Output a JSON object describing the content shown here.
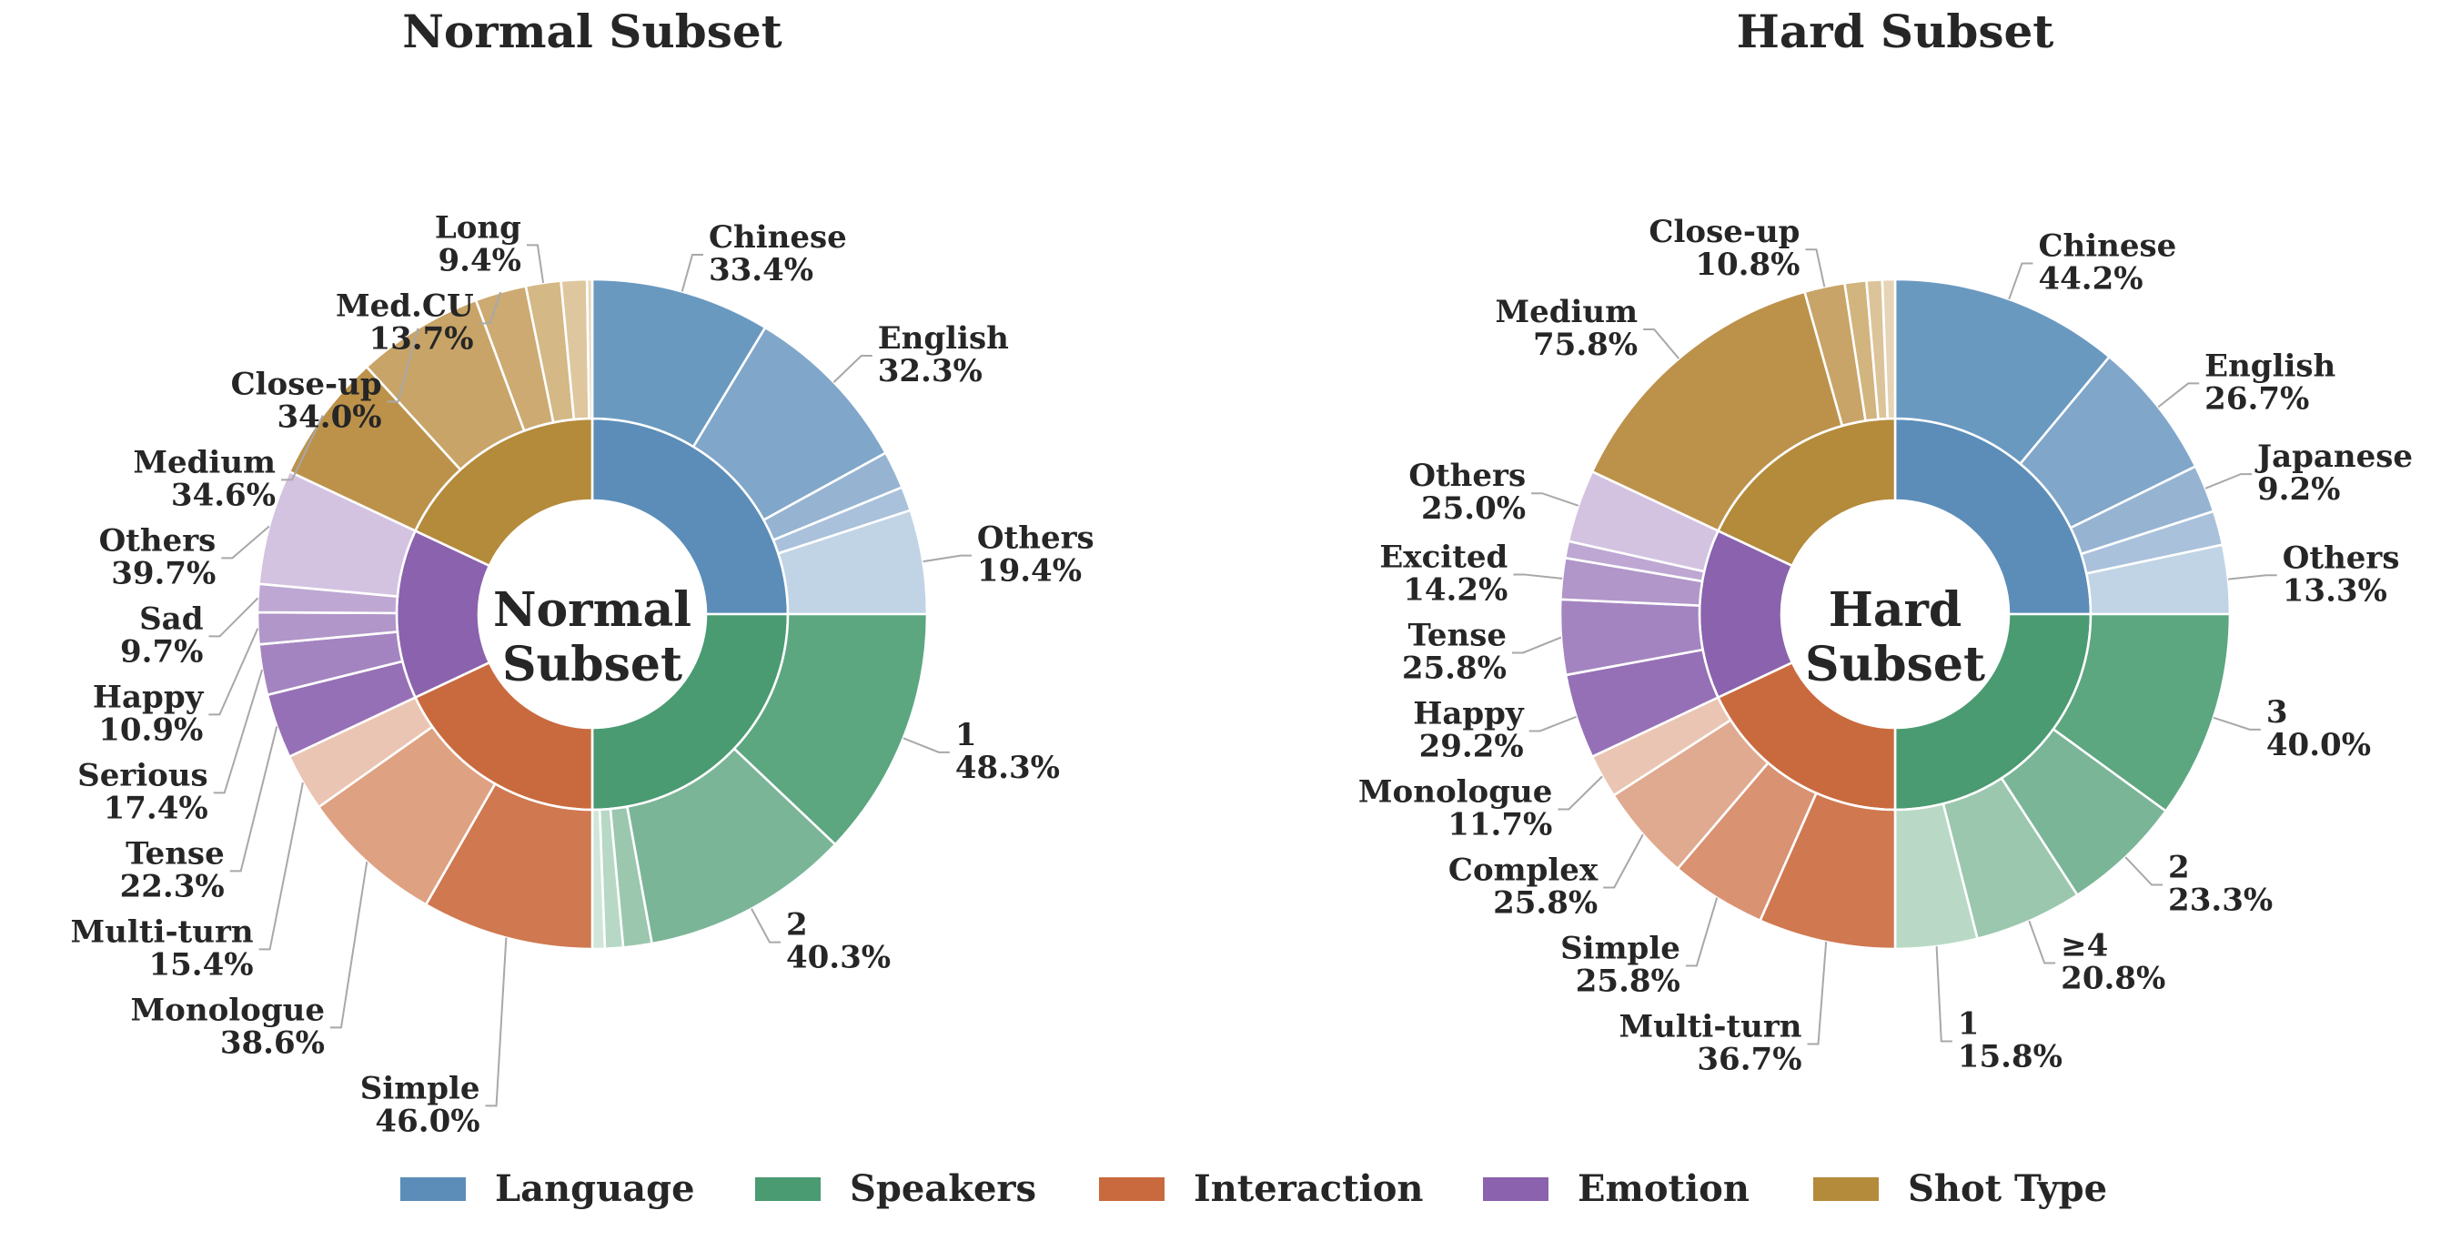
{
  "chart_data": [
    {
      "type": "pie",
      "subtype": "nested-donut",
      "title": "Normal Subset",
      "center_label": [
        "Normal",
        "Subset"
      ],
      "groups": [
        {
          "name": "Language",
          "color": "#5b8db8",
          "share": 25,
          "subcategories": [
            {
              "label": "Chinese",
              "value": 33.4,
              "color": "#6a99c0",
              "labeled": true
            },
            {
              "label": "English",
              "value": 32.3,
              "color": "#80a6c9",
              "labeled": true
            },
            {
              "label": "",
              "value": 7.0,
              "color": "#96b4d2",
              "labeled": false
            },
            {
              "label": "",
              "value": 4.5,
              "color": "#a9c1db",
              "labeled": false
            },
            {
              "label": "Others",
              "value": 19.4,
              "color": "#c1d4e5",
              "labeled": true
            }
          ]
        },
        {
          "name": "Speakers",
          "color": "#4a9a72",
          "share": 25,
          "subcategories": [
            {
              "label": "1",
              "value": 48.3,
              "color": "#5ca680",
              "labeled": true
            },
            {
              "label": "2",
              "value": 40.3,
              "color": "#7bb597",
              "labeled": true
            },
            {
              "label": "",
              "value": 5.5,
              "color": "#9ac7ae",
              "labeled": false
            },
            {
              "label": "",
              "value": 3.5,
              "color": "#b6d8c5",
              "labeled": false
            },
            {
              "label": "",
              "value": 2.4,
              "color": "#cfe6d9",
              "labeled": false
            }
          ]
        },
        {
          "name": "Interaction",
          "color": "#c96a3e",
          "share": 18,
          "subcategories": [
            {
              "label": "Simple",
              "value": 46.0,
              "color": "#d07850",
              "labeled": true
            },
            {
              "label": "Monologue",
              "value": 38.6,
              "color": "#dea182",
              "labeled": true
            },
            {
              "label": "Multi-turn",
              "value": 15.4,
              "color": "#ebc5b3",
              "labeled": true
            }
          ]
        },
        {
          "name": "Emotion",
          "color": "#8a62ad",
          "share": 14,
          "subcategories": [
            {
              "label": "Tense",
              "value": 22.3,
              "color": "#9670b6",
              "labeled": true
            },
            {
              "label": "Serious",
              "value": 17.4,
              "color": "#a484c0",
              "labeled": true
            },
            {
              "label": "Happy",
              "value": 10.9,
              "color": "#b196c9",
              "labeled": true
            },
            {
              "label": "Sad",
              "value": 9.7,
              "color": "#bea8d3",
              "labeled": true
            },
            {
              "label": "Others",
              "value": 39.7,
              "color": "#d3c3e1",
              "labeled": true
            }
          ]
        },
        {
          "name": "Shot Type",
          "color": "#b48a3b",
          "share": 18,
          "subcategories": [
            {
              "label": "Medium",
              "value": 34.6,
              "color": "#bc924b",
              "labeled": true
            },
            {
              "label": "Close-up",
              "value": 34.0,
              "color": "#c8a468",
              "labeled": true
            },
            {
              "label": "Med.CU",
              "value": 13.7,
              "color": "#ccaa72",
              "labeled": true
            },
            {
              "label": "Long",
              "value": 9.4,
              "color": "#d4b885",
              "labeled": true
            },
            {
              "label": "",
              "value": 6.9,
              "color": "#dec79e",
              "labeled": false
            },
            {
              "label": "",
              "value": 1.4,
              "color": "#e8d8bb",
              "labeled": false
            }
          ]
        }
      ]
    },
    {
      "type": "pie",
      "subtype": "nested-donut",
      "title": "Hard Subset",
      "center_label": [
        "Hard",
        "Subset"
      ],
      "groups": [
        {
          "name": "Language",
          "color": "#5b8db8",
          "share": 25,
          "subcategories": [
            {
              "label": "Chinese",
              "value": 44.2,
              "color": "#6a99c0",
              "labeled": true
            },
            {
              "label": "English",
              "value": 26.7,
              "color": "#80a6c9",
              "labeled": true
            },
            {
              "label": "Japanese",
              "value": 9.2,
              "color": "#96b4d2",
              "labeled": true
            },
            {
              "label": "",
              "value": 6.6,
              "color": "#a9c1db",
              "labeled": false
            },
            {
              "label": "Others",
              "value": 13.3,
              "color": "#c1d4e5",
              "labeled": true
            }
          ]
        },
        {
          "name": "Speakers",
          "color": "#4a9a72",
          "share": 25,
          "subcategories": [
            {
              "label": "3",
              "value": 40.0,
              "color": "#5ca680",
              "labeled": true
            },
            {
              "label": "2",
              "value": 23.3,
              "color": "#7bb597",
              "labeled": true
            },
            {
              "label": "≥4",
              "value": 20.8,
              "color": "#9ac7ae",
              "labeled": true
            },
            {
              "label": "1",
              "value": 15.8,
              "color": "#b9d9c6",
              "labeled": true
            }
          ]
        },
        {
          "name": "Interaction",
          "color": "#c96a3e",
          "share": 18,
          "subcategories": [
            {
              "label": "Multi-turn",
              "value": 36.7,
              "color": "#d07850",
              "labeled": true
            },
            {
              "label": "Simple",
              "value": 25.8,
              "color": "#d99272",
              "labeled": true
            },
            {
              "label": "Complex",
              "value": 25.8,
              "color": "#e0aa90",
              "labeled": true
            },
            {
              "label": "Monologue",
              "value": 11.7,
              "color": "#ebc5b3",
              "labeled": true
            }
          ]
        },
        {
          "name": "Emotion",
          "color": "#8a62ad",
          "share": 14,
          "subcategories": [
            {
              "label": "Happy",
              "value": 29.2,
              "color": "#9670b6",
              "labeled": true
            },
            {
              "label": "Tense",
              "value": 25.8,
              "color": "#a484c0",
              "labeled": true
            },
            {
              "label": "Excited",
              "value": 14.2,
              "color": "#b196c9",
              "labeled": true
            },
            {
              "label": "",
              "value": 5.8,
              "color": "#bea8d3",
              "labeled": false
            },
            {
              "label": "Others",
              "value": 25.0,
              "color": "#d3c3e1",
              "labeled": true
            }
          ]
        },
        {
          "name": "Shot Type",
          "color": "#b48a3b",
          "share": 18,
          "subcategories": [
            {
              "label": "Medium",
              "value": 75.8,
              "color": "#bc924b",
              "labeled": true
            },
            {
              "label": "Close-up",
              "value": 10.8,
              "color": "#c8a468",
              "labeled": true
            },
            {
              "label": "",
              "value": 5.8,
              "color": "#d2b47e",
              "labeled": false
            },
            {
              "label": "",
              "value": 4.2,
              "color": "#dcc49a",
              "labeled": false
            },
            {
              "label": "",
              "value": 3.4,
              "color": "#e6d4b6",
              "labeled": false
            }
          ]
        }
      ]
    }
  ],
  "legend": {
    "placement": "bottom-center",
    "items": [
      {
        "label": "Language",
        "color": "#5b8db8"
      },
      {
        "label": "Speakers",
        "color": "#4a9a72"
      },
      {
        "label": "Interaction",
        "color": "#c96a3e"
      },
      {
        "label": "Emotion",
        "color": "#8a62ad"
      },
      {
        "label": "Shot Type",
        "color": "#b48a3b"
      }
    ]
  }
}
